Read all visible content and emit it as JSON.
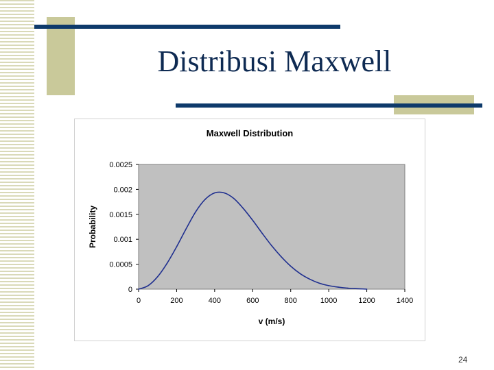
{
  "slide": {
    "title": "Distribusi Maxwell",
    "page_number": "24"
  },
  "colors": {
    "stripe": "#d9d9b8",
    "accent_block": "#c9c99a",
    "accent_bar": "#0e3a6b",
    "plot_background": "#c0c0c0",
    "line": "#1f2f8f"
  },
  "chart_data": {
    "type": "line",
    "title": "Maxwell Distribution",
    "xlabel": "v (m/s)",
    "ylabel": "Probability",
    "xlim": [
      0,
      1400
    ],
    "ylim": [
      0,
      0.0025
    ],
    "x_ticks": [
      "0",
      "200",
      "400",
      "600",
      "800",
      "1000",
      "1200",
      "1400"
    ],
    "y_ticks": [
      "0",
      "0.0005",
      "0.001",
      "0.0015",
      "0.002",
      "0.0025"
    ],
    "grid": false,
    "legend": "none",
    "series": [
      {
        "x": [
          0,
          50,
          100,
          150,
          200,
          250,
          300,
          350,
          400,
          450,
          500,
          550,
          600,
          650,
          700,
          750,
          800,
          850,
          900,
          950,
          1000,
          1050,
          1100,
          1150,
          1200
        ],
        "y": [
          0,
          7e-05,
          0.00025,
          0.00052,
          0.00085,
          0.00121,
          0.00155,
          0.0018,
          0.00193,
          0.00193,
          0.00182,
          0.00162,
          0.00138,
          0.00112,
          0.00087,
          0.00065,
          0.00046,
          0.00031,
          0.0002,
          0.00012,
          7e-05,
          4e-05,
          2e-05,
          1e-05,
          0
        ]
      }
    ]
  }
}
